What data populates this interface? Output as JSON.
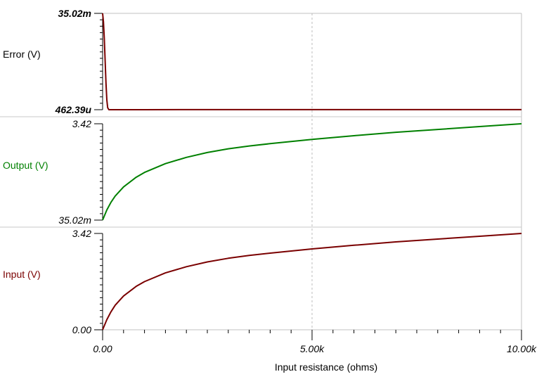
{
  "chart_data": {
    "type": "line",
    "xlabel": "Input resistance (ohms)",
    "x_ticks": [
      "0.00",
      "5.00k",
      "10.00k"
    ],
    "xlim": [
      0,
      10000
    ],
    "x": [
      0,
      100,
      200,
      300,
      500,
      800,
      1000,
      1500,
      2000,
      2500,
      3000,
      3500,
      4000,
      5000,
      6000,
      7000,
      8000,
      9000,
      10000
    ],
    "panels": [
      {
        "name": "Error (V)",
        "color": "#7a0000",
        "label_color": "#000000",
        "ylim": [
          0.00046239,
          0.03502
        ],
        "y_tick_labels": [
          "35.02m",
          "462.39u"
        ],
        "bold_ticks": true,
        "x": [
          0,
          20,
          40,
          60,
          80,
          100,
          120,
          150,
          200,
          1000,
          2000,
          5000,
          10000
        ],
        "values": [
          0.03502,
          0.032,
          0.026,
          0.018,
          0.01,
          0.004,
          0.0012,
          0.00046239,
          0.00046239,
          0.00046239,
          0.0005,
          0.0005,
          0.0005
        ]
      },
      {
        "name": "Output (V)",
        "color": "#008000",
        "label_color": "#008000",
        "ylim": [
          0.03502,
          3.42
        ],
        "y_tick_labels": [
          "3.42",
          "35.02m"
        ],
        "bold_ticks": false,
        "values": [
          0.035,
          0.39,
          0.66,
          0.88,
          1.2,
          1.54,
          1.71,
          2.02,
          2.24,
          2.41,
          2.54,
          2.64,
          2.72,
          2.87,
          3.0,
          3.12,
          3.22,
          3.32,
          3.42
        ]
      },
      {
        "name": "Input (V)",
        "color": "#7a0000",
        "label_color": "#7a0000",
        "ylim": [
          0.0,
          3.42
        ],
        "y_tick_labels": [
          "3.42",
          "0.00"
        ],
        "bold_ticks": false,
        "values": [
          0.0,
          0.36,
          0.64,
          0.87,
          1.2,
          1.54,
          1.71,
          2.02,
          2.24,
          2.41,
          2.54,
          2.64,
          2.72,
          2.87,
          3.0,
          3.12,
          3.22,
          3.32,
          3.42
        ]
      }
    ],
    "grid": "vertical dashed at 5.00k"
  }
}
